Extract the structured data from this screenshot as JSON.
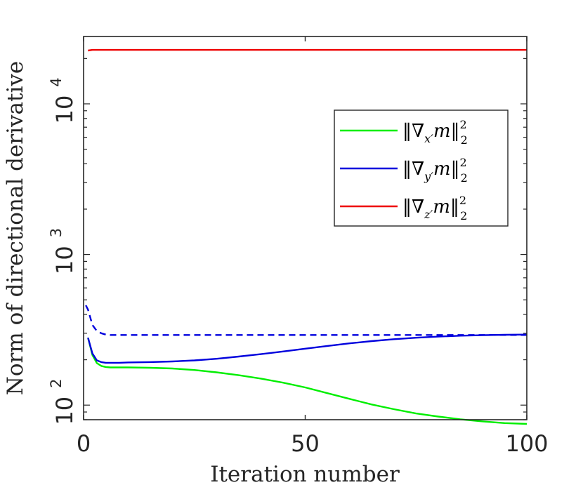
{
  "chart_data": {
    "type": "line",
    "title": "",
    "xlabel": "Iteration number",
    "ylabel": "Norm of directional derivative",
    "xlim": [
      0,
      100
    ],
    "ylim": [
      80,
      28000
    ],
    "yscale": "log",
    "grid": false,
    "legend_position": "top-right",
    "x_ticks": [
      0,
      50,
      100
    ],
    "y_ticks": [
      {
        "value": 100,
        "base": "10",
        "exponent": "2"
      },
      {
        "value": 1000,
        "base": "10",
        "exponent": "3"
      },
      {
        "value": 10000,
        "base": "10",
        "exponent": "4"
      }
    ],
    "series": [
      {
        "name": "x-prime",
        "legend": {
          "open": "‖∇",
          "sub": "x′",
          "close": "m‖",
          "sup": "2",
          "subr": "2"
        },
        "color": "#00ee00",
        "dashed": false,
        "x": [
          1,
          2,
          3,
          4,
          5,
          6,
          8,
          10,
          15,
          20,
          25,
          30,
          35,
          40,
          45,
          50,
          55,
          60,
          65,
          70,
          75,
          80,
          85,
          90,
          95,
          100
        ],
        "y": [
          280,
          215,
          190,
          182,
          179,
          178,
          178,
          178,
          177,
          175,
          171,
          165,
          158,
          150,
          141,
          131,
          120,
          110,
          101,
          94,
          88,
          84,
          80.5,
          78,
          76,
          75
        ]
      },
      {
        "name": "y-prime",
        "legend": {
          "open": "‖∇",
          "sub": "y′",
          "close": "m‖",
          "sup": "2",
          "subr": "2"
        },
        "color": "#0000dd",
        "dashed": false,
        "x": [
          1,
          2,
          3,
          4,
          5,
          6,
          8,
          10,
          15,
          20,
          25,
          30,
          35,
          40,
          45,
          50,
          55,
          60,
          65,
          70,
          75,
          80,
          85,
          90,
          95,
          100
        ],
        "y": [
          280,
          220,
          198,
          193,
          191,
          191,
          191,
          192,
          193,
          195,
          198,
          203,
          210,
          218,
          227,
          237,
          247,
          257,
          266,
          274,
          280,
          285,
          289,
          291,
          293,
          294
        ]
      },
      {
        "name": "y-prime-reference",
        "legend": null,
        "color": "#0000dd",
        "dashed": true,
        "x": [
          0.5,
          1,
          2,
          3,
          4,
          5,
          6,
          10,
          20,
          30,
          40,
          50,
          60,
          70,
          80,
          90,
          100
        ],
        "y": [
          460,
          430,
          340,
          310,
          300,
          294,
          292,
          292,
          292,
          292,
          292,
          292,
          292,
          292,
          292,
          292,
          292
        ]
      },
      {
        "name": "z-prime",
        "legend": {
          "open": "‖∇",
          "sub": "z′",
          "close": "m‖",
          "sup": "2",
          "subr": "2"
        },
        "color": "#ee0000",
        "dashed": false,
        "x": [
          1,
          2,
          5,
          10,
          20,
          30,
          40,
          50,
          60,
          70,
          80,
          90,
          100
        ],
        "y": [
          22600,
          22800,
          22800,
          22800,
          22800,
          22800,
          22800,
          22800,
          22800,
          22800,
          22800,
          22800,
          22800
        ]
      }
    ]
  }
}
